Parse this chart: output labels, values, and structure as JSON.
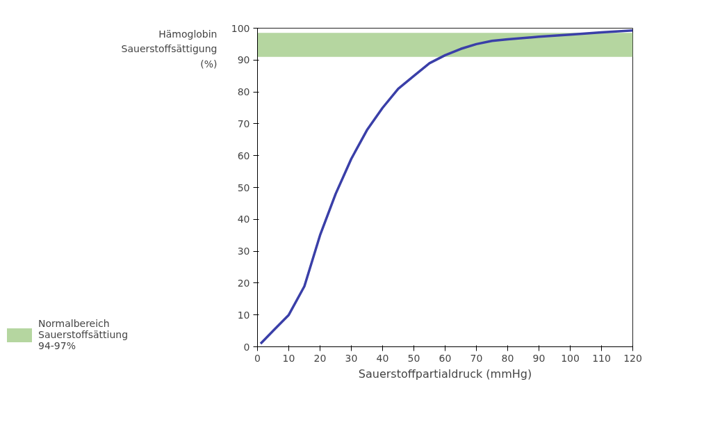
{
  "chart_data": {
    "type": "line",
    "ylabel": "Hämoglobin\nSauerstoffsättigung\n(%)",
    "xlabel": "Sauerstoffpartialdruck (mmHg)",
    "x": [
      1,
      5,
      10,
      15,
      20,
      25,
      30,
      35,
      40,
      45,
      50,
      55,
      60,
      65,
      70,
      75,
      80,
      90,
      100,
      110,
      120
    ],
    "series": [
      {
        "color": "#3a3fa8",
        "values": [
          1,
          5,
          10,
          19,
          35,
          48,
          59,
          68,
          75,
          81,
          85,
          89,
          91.5,
          93.5,
          95,
          96,
          96.5,
          97.3,
          98,
          98.7,
          99.3
        ]
      }
    ],
    "xlim": [
      0,
      120
    ],
    "xticks": [
      0,
      10,
      20,
      30,
      40,
      50,
      60,
      70,
      80,
      90,
      100,
      110,
      120
    ],
    "ylim": [
      0,
      100
    ],
    "yticks": [
      0,
      10,
      20,
      30,
      40,
      50,
      60,
      70,
      80,
      90,
      100
    ],
    "bands": [
      {
        "axis": "y",
        "from": 91,
        "to": 98.5,
        "label": "Normalbereich\nSauerstoffsättiung\n94-97%",
        "color": "#b5d6a0"
      }
    ],
    "legend": "left",
    "grid": false,
    "marker": "none",
    "line_style": "solid"
  }
}
